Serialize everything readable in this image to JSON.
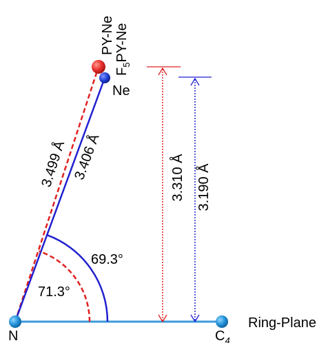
{
  "labels": {
    "py_ne": "PY-Ne",
    "f5py_ne_prefix": "F",
    "f5py_ne_sub": "5",
    "f5py_ne_suffix": "PY-Ne",
    "ne": "Ne",
    "n_atom": "N",
    "c4_main": "C",
    "c4_sub": "4",
    "ring_plane": "Ring-Plane"
  },
  "measurements": {
    "distance_py": "3.499 Å",
    "distance_f5": "3.406 Å",
    "height_py": "3.310 Å",
    "height_f5": "3.190 Å",
    "angle_f5": "69.3°",
    "angle_py": "71.3°"
  },
  "colors": {
    "ring_plane_line": "#3a9ad9",
    "atom_blue": "#1f8fd6",
    "py_ne_atom": "#e8312e",
    "f5_ne_atom": "#1f3fd1",
    "py_series": "#e02020",
    "f5_series": "#2020d0"
  }
}
